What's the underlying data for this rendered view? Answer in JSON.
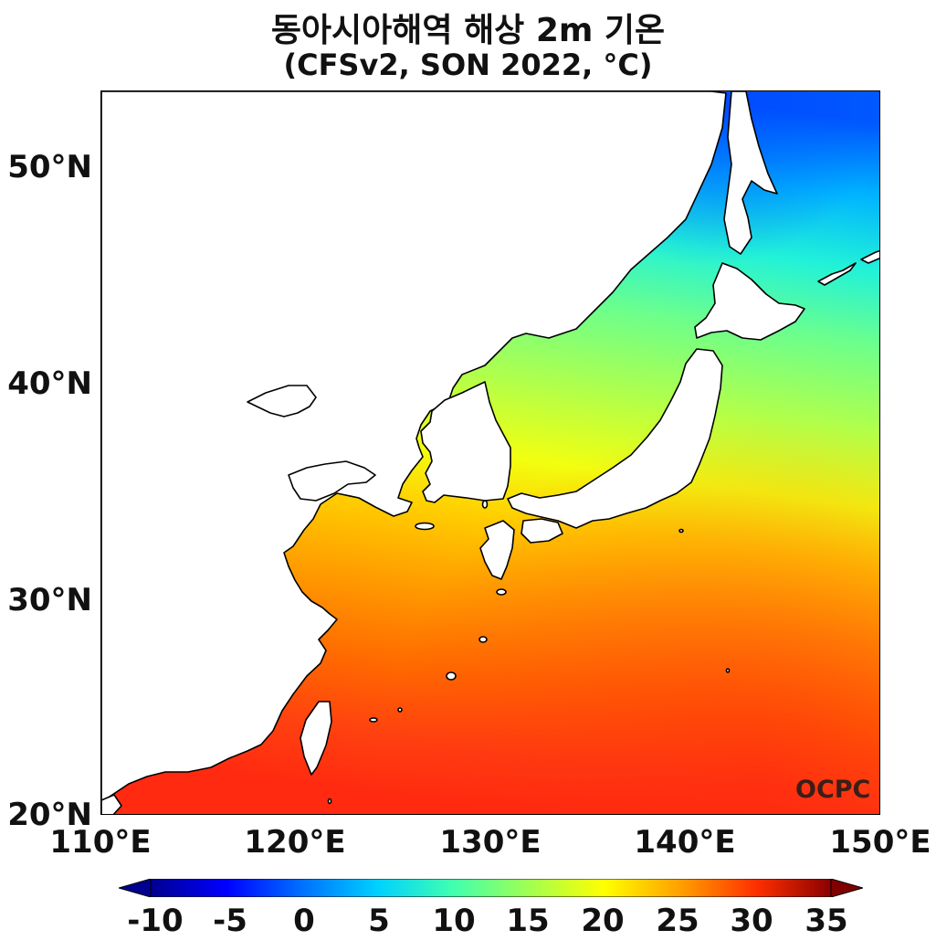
{
  "title_line1": "동아시아해역 해상 2m 기온",
  "title_line2": "(CFSv2, SON 2022, °C)",
  "latitude_labels": [
    "50°N",
    "40°N",
    "30°N",
    "20°N"
  ],
  "longitude_labels": [
    "110°E",
    "120°E",
    "130°E",
    "140°E",
    "150°E"
  ],
  "colorbar": {
    "tick_labels": [
      "-10",
      "-5",
      "0",
      "5",
      "10",
      "15",
      "20",
      "25",
      "30",
      "35"
    ],
    "min": -10,
    "max": 35,
    "extend": "both",
    "colormap": "jet"
  },
  "watermark": "OCPC",
  "colors": {
    "land": "#ffffff",
    "coastline": "#000000"
  }
}
